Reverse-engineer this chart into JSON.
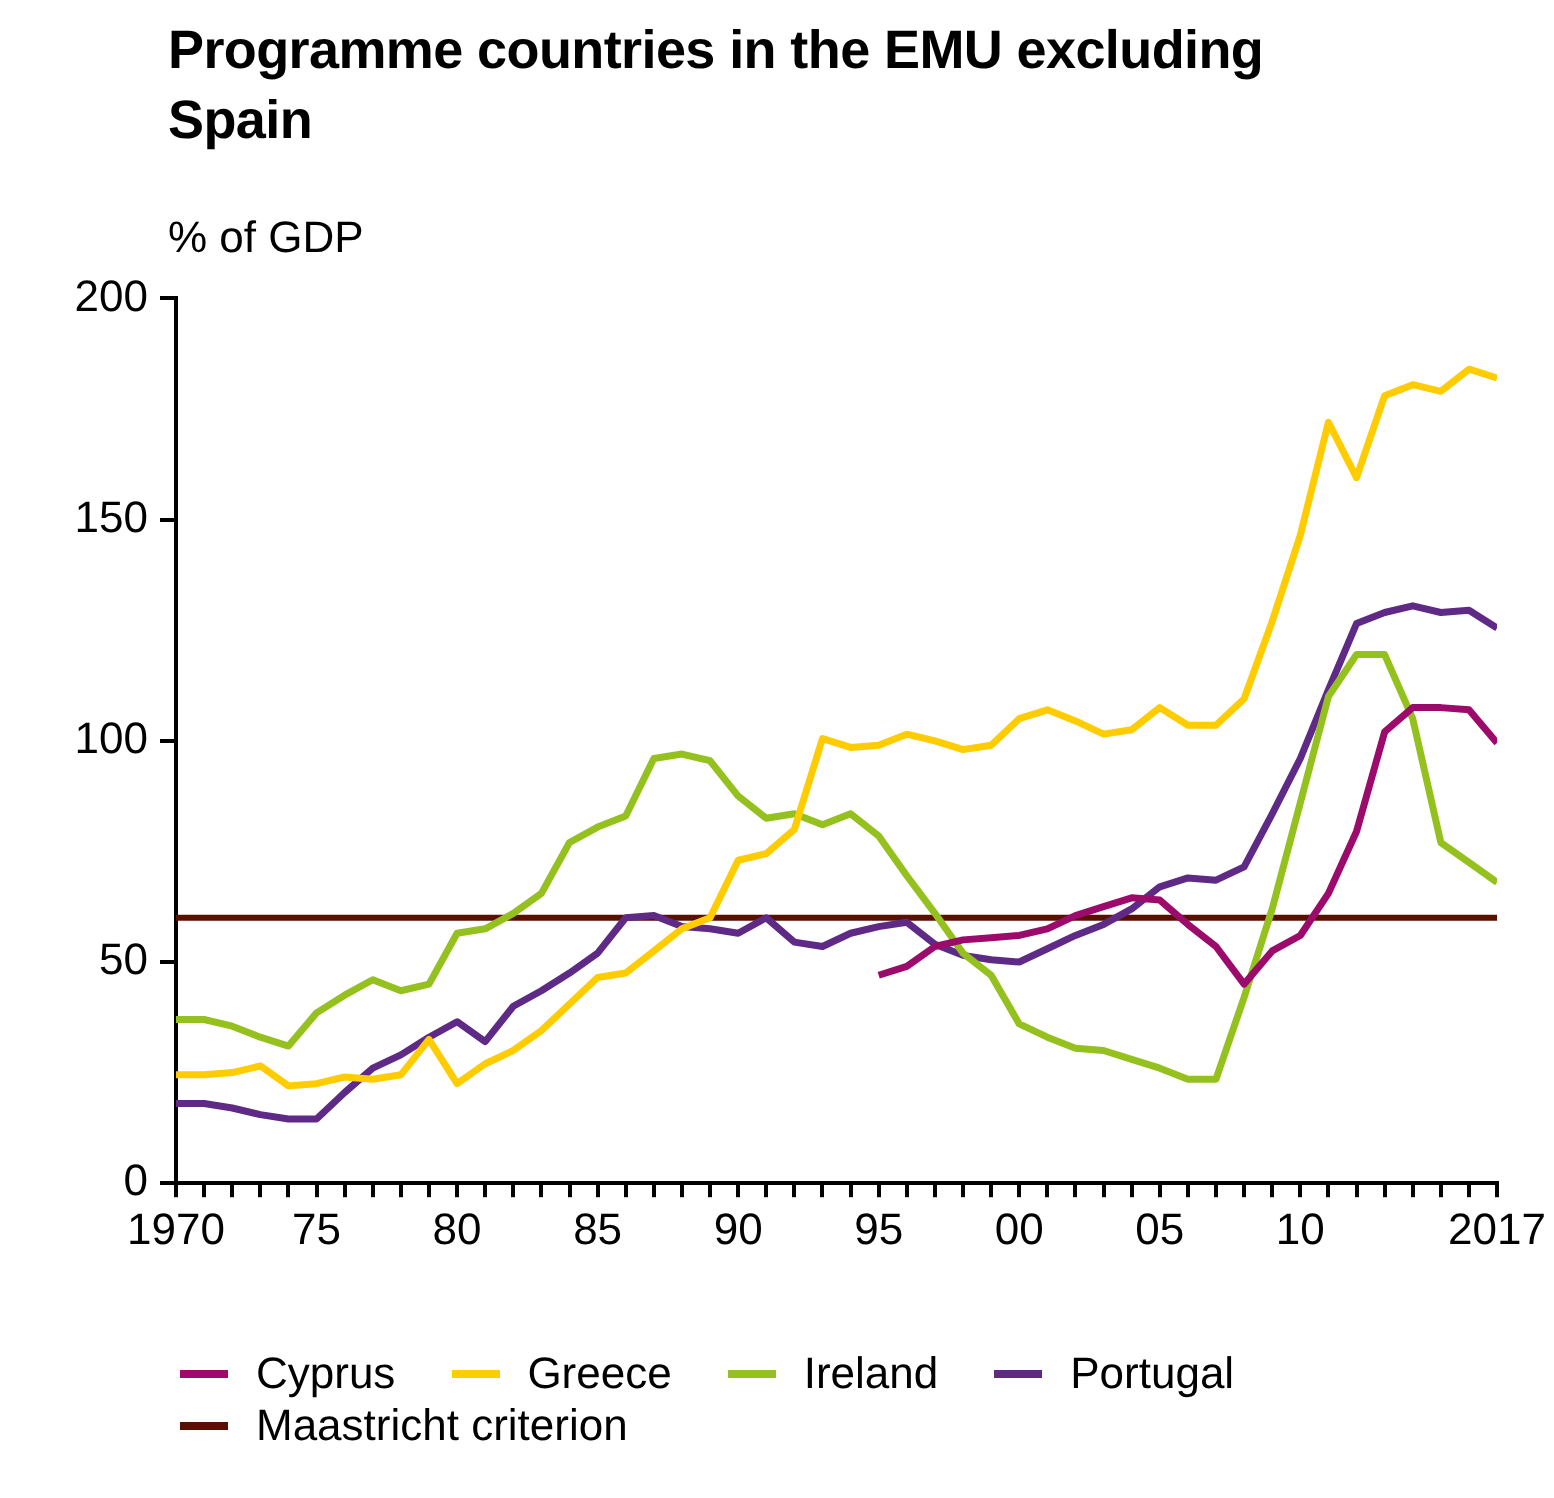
{
  "chart_data": {
    "type": "line",
    "title": "Programme countries in the EMU excluding Spain",
    "ylabel": "% of GDP",
    "x": [
      1970,
      1971,
      1972,
      1973,
      1974,
      1975,
      1976,
      1977,
      1978,
      1979,
      1980,
      1981,
      1982,
      1983,
      1984,
      1985,
      1986,
      1987,
      1988,
      1989,
      1990,
      1991,
      1992,
      1993,
      1994,
      1995,
      1996,
      1997,
      1998,
      1999,
      2000,
      2001,
      2002,
      2003,
      2004,
      2005,
      2006,
      2007,
      2008,
      2009,
      2010,
      2011,
      2012,
      2013,
      2014,
      2015,
      2016,
      2017
    ],
    "series": [
      {
        "name": "Cyprus",
        "color": "#9c0a6b",
        "values": [
          null,
          null,
          null,
          null,
          null,
          null,
          null,
          null,
          null,
          null,
          null,
          null,
          null,
          null,
          null,
          null,
          null,
          null,
          null,
          null,
          null,
          null,
          null,
          null,
          null,
          47,
          49,
          53.5,
          55,
          55.5,
          56,
          57.5,
          60.5,
          62.5,
          64.5,
          64,
          58.5,
          53.5,
          45,
          52.5,
          56,
          65.5,
          79.5,
          102,
          107.5,
          107.5,
          107,
          99.5
        ]
      },
      {
        "name": "Greece",
        "color": "#ffcc00",
        "values": [
          24.5,
          24.5,
          25,
          26.5,
          22,
          22.5,
          24,
          23.5,
          24.5,
          32.5,
          22.5,
          27,
          30,
          34.5,
          40.5,
          46.5,
          47.5,
          52.5,
          57.5,
          60,
          73,
          74.5,
          80,
          100.5,
          98.5,
          99,
          101.5,
          100,
          98,
          99,
          105,
          107,
          104.5,
          101.5,
          102.5,
          107.5,
          103.5,
          103.5,
          109.5,
          127,
          146.5,
          172,
          159.5,
          178,
          180.5,
          179,
          184,
          182
        ]
      },
      {
        "name": "Ireland",
        "color": "#95c11f",
        "values": [
          37,
          37,
          35.5,
          33,
          31,
          38.5,
          42.5,
          46,
          43.5,
          45,
          56.5,
          57.5,
          61,
          65.5,
          77,
          80.5,
          83,
          96,
          97,
          95.5,
          87.5,
          82.5,
          83.5,
          81,
          83.5,
          78.5,
          69.5,
          61,
          52,
          47,
          36,
          33,
          30.5,
          30,
          28,
          26,
          23.5,
          23.5,
          42,
          62,
          86,
          110,
          119.5,
          119.5,
          105,
          77,
          72.5,
          68
        ]
      },
      {
        "name": "Portugal",
        "color": "#5f2a86",
        "values": [
          18,
          18,
          17,
          15.5,
          14.5,
          14.5,
          20.5,
          26,
          29,
          33,
          36.5,
          32,
          40,
          43.5,
          47.5,
          52,
          60,
          60.5,
          58,
          57.5,
          56.5,
          60,
          54.5,
          53.5,
          56.5,
          58,
          59,
          54,
          51.5,
          50.5,
          50,
          53,
          56,
          58.5,
          62,
          67,
          69,
          68.5,
          71.5,
          83.5,
          96,
          111.5,
          126.5,
          129,
          130.5,
          129,
          129.5,
          125.5
        ]
      }
    ],
    "ref_lines": [
      {
        "axis": "y",
        "value": 60,
        "label": "Maastricht criterion",
        "color": "#5a1000"
      }
    ],
    "xlim": [
      1970,
      2017
    ],
    "xticks": [
      {
        "value": 1970,
        "label": "1970"
      },
      {
        "value": 1971,
        "label": null
      },
      {
        "value": 1972,
        "label": null
      },
      {
        "value": 1973,
        "label": null
      },
      {
        "value": 1974,
        "label": null
      },
      {
        "value": 1975,
        "label": "75"
      },
      {
        "value": 1976,
        "label": null
      },
      {
        "value": 1977,
        "label": null
      },
      {
        "value": 1978,
        "label": null
      },
      {
        "value": 1979,
        "label": null
      },
      {
        "value": 1980,
        "label": "80"
      },
      {
        "value": 1981,
        "label": null
      },
      {
        "value": 1982,
        "label": null
      },
      {
        "value": 1983,
        "label": null
      },
      {
        "value": 1984,
        "label": null
      },
      {
        "value": 1985,
        "label": "85"
      },
      {
        "value": 1986,
        "label": null
      },
      {
        "value": 1987,
        "label": null
      },
      {
        "value": 1988,
        "label": null
      },
      {
        "value": 1989,
        "label": null
      },
      {
        "value": 1990,
        "label": "90"
      },
      {
        "value": 1991,
        "label": null
      },
      {
        "value": 1992,
        "label": null
      },
      {
        "value": 1993,
        "label": null
      },
      {
        "value": 1994,
        "label": null
      },
      {
        "value": 1995,
        "label": "95"
      },
      {
        "value": 1996,
        "label": null
      },
      {
        "value": 1997,
        "label": null
      },
      {
        "value": 1998,
        "label": null
      },
      {
        "value": 1999,
        "label": null
      },
      {
        "value": 2000,
        "label": "00"
      },
      {
        "value": 2001,
        "label": null
      },
      {
        "value": 2002,
        "label": null
      },
      {
        "value": 2003,
        "label": null
      },
      {
        "value": 2004,
        "label": null
      },
      {
        "value": 2005,
        "label": "05"
      },
      {
        "value": 2006,
        "label": null
      },
      {
        "value": 2007,
        "label": null
      },
      {
        "value": 2008,
        "label": null
      },
      {
        "value": 2009,
        "label": null
      },
      {
        "value": 2010,
        "label": "10"
      },
      {
        "value": 2011,
        "label": null
      },
      {
        "value": 2012,
        "label": null
      },
      {
        "value": 2013,
        "label": null
      },
      {
        "value": 2014,
        "label": null
      },
      {
        "value": 2015,
        "label": null
      },
      {
        "value": 2016,
        "label": null
      },
      {
        "value": 2017,
        "label": "2017"
      }
    ],
    "ylim": [
      0,
      200
    ],
    "yticks": [
      0,
      50,
      100,
      150,
      200
    ],
    "grid": false,
    "legend": "bottom",
    "marker": "none",
    "line_style": "solid"
  }
}
